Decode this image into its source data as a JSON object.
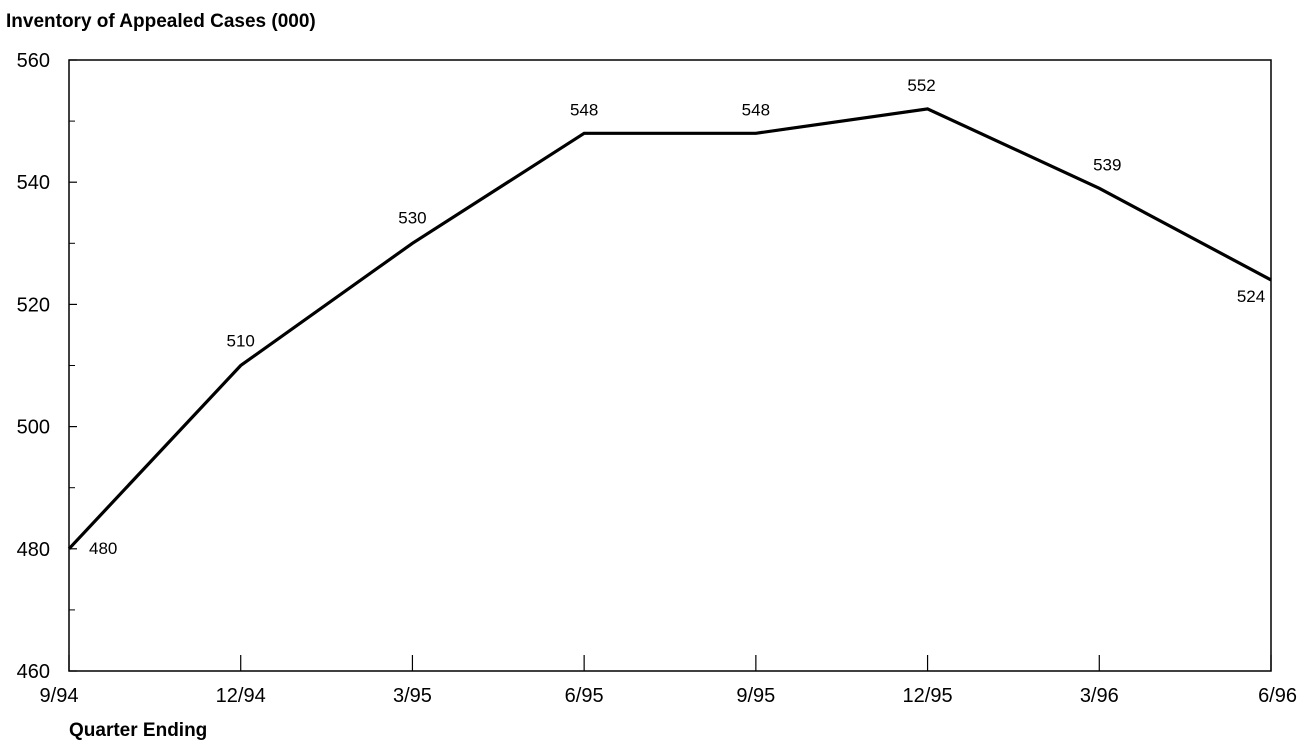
{
  "chart_data": {
    "type": "line",
    "title": "Inventory of Appealed Cases (000)",
    "xlabel": "Quarter Ending",
    "ylabel": "",
    "categories": [
      "9/94",
      "12/94",
      "3/95",
      "6/95",
      "9/95",
      "12/95",
      "3/96",
      "6/96"
    ],
    "series": [
      {
        "values": [
          480,
          510,
          530,
          548,
          548,
          552,
          539,
          524
        ]
      }
    ],
    "data_labels": [
      "480",
      "510",
      "530",
      "548",
      "548",
      "552",
      "539",
      "524"
    ],
    "ylim": [
      460,
      560
    ],
    "yticks": [
      460,
      480,
      500,
      520,
      540,
      560
    ],
    "yticks_minor": [
      470,
      490,
      510,
      530,
      550
    ],
    "grid": false,
    "legend": "none",
    "line_color": "#000000"
  }
}
